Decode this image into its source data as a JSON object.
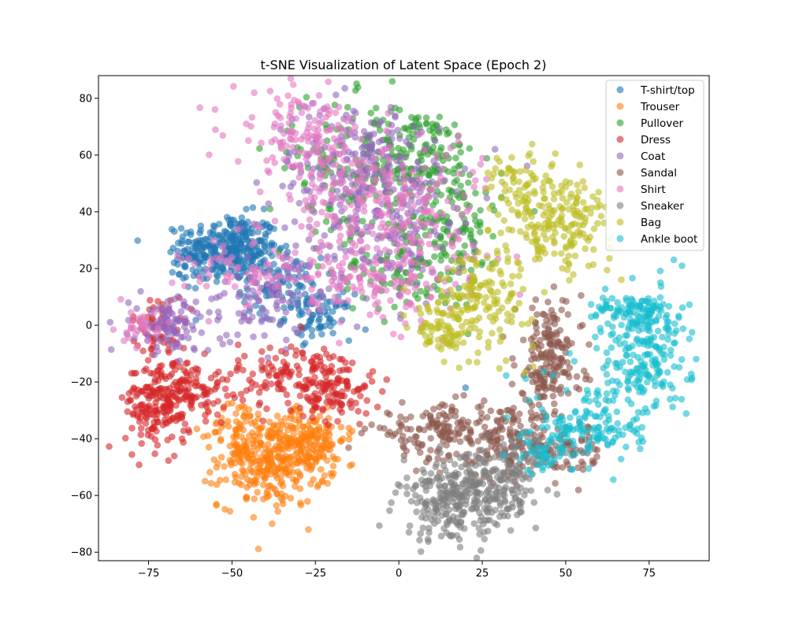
{
  "chart_data": {
    "type": "scatter",
    "title": "t-SNE Visualization of Latent Space (Epoch 2)",
    "xlabel": "",
    "ylabel": "",
    "xlim": [
      -90,
      93
    ],
    "ylim": [
      -83,
      88
    ],
    "xticks": [
      -75,
      -50,
      -25,
      0,
      25,
      50,
      75
    ],
    "yticks": [
      -80,
      -60,
      -40,
      -20,
      0,
      20,
      40,
      60,
      80
    ],
    "grid": false,
    "legend": "top-right",
    "marker_alpha": 0.6,
    "series": [
      {
        "name": "T-shirt/top",
        "color": "#1f77b4",
        "clusters": [
          {
            "center": [
              -50,
              27
            ],
            "spread": [
              7,
              6
            ],
            "count": 300
          },
          {
            "center": [
              -35,
              14
            ],
            "spread": [
              6,
              5
            ],
            "count": 90
          },
          {
            "center": [
              -24,
              3
            ],
            "spread": [
              5,
              4
            ],
            "count": 70
          },
          {
            "center": [
              -62,
              22
            ],
            "spread": [
              4,
              5
            ],
            "count": 40
          }
        ],
        "points": [
          [
            20,
            -22
          ]
        ]
      },
      {
        "name": "Trouser",
        "color": "#ff7f0e",
        "clusters": [
          {
            "center": [
              -38,
              -48
            ],
            "spread": [
              8,
              8
            ],
            "count": 300
          },
          {
            "center": [
              -26,
              -40
            ],
            "spread": [
              5,
              6
            ],
            "count": 120
          },
          {
            "center": [
              -48,
              -38
            ],
            "spread": [
              4,
              6
            ],
            "count": 60
          }
        ]
      },
      {
        "name": "Pullover",
        "color": "#2ca02c",
        "clusters": [
          {
            "center": [
              5,
              60
            ],
            "spread": [
              10,
              8
            ],
            "count": 160
          },
          {
            "center": [
              15,
              35
            ],
            "spread": [
              8,
              12
            ],
            "count": 140
          },
          {
            "center": [
              -15,
              55
            ],
            "spread": [
              12,
              12
            ],
            "count": 120
          },
          {
            "center": [
              0,
              20
            ],
            "spread": [
              10,
              8
            ],
            "count": 80
          }
        ]
      },
      {
        "name": "Dress",
        "color": "#d62728",
        "clusters": [
          {
            "center": [
              -72,
              -28
            ],
            "spread": [
              5,
              8
            ],
            "count": 180
          },
          {
            "center": [
              -62,
              -22
            ],
            "spread": [
              6,
              5
            ],
            "count": 100
          },
          {
            "center": [
              -30,
              -18
            ],
            "spread": [
              9,
              6
            ],
            "count": 150
          },
          {
            "center": [
              -18,
              -25
            ],
            "spread": [
              5,
              5
            ],
            "count": 70
          },
          {
            "center": [
              -72,
              0
            ],
            "spread": [
              4,
              5
            ],
            "count": 50
          }
        ]
      },
      {
        "name": "Coat",
        "color": "#9467bd",
        "clusters": [
          {
            "center": [
              -10,
              55
            ],
            "spread": [
              14,
              12
            ],
            "count": 220
          },
          {
            "center": [
              -5,
              30
            ],
            "spread": [
              12,
              12
            ],
            "count": 120
          },
          {
            "center": [
              -68,
              0
            ],
            "spread": [
              6,
              5
            ],
            "count": 110
          },
          {
            "center": [
              -40,
              8
            ],
            "spread": [
              10,
              8
            ],
            "count": 80
          }
        ]
      },
      {
        "name": "Sandal",
        "color": "#8c564b",
        "clusters": [
          {
            "center": [
              45,
              -12
            ],
            "spread": [
              5,
              10
            ],
            "count": 180
          },
          {
            "center": [
              15,
              -38
            ],
            "spread": [
              12,
              5
            ],
            "count": 180
          },
          {
            "center": [
              35,
              -42
            ],
            "spread": [
              6,
              6
            ],
            "count": 100
          },
          {
            "center": [
              52,
              -45
            ],
            "spread": [
              5,
              5
            ],
            "count": 60
          }
        ]
      },
      {
        "name": "Shirt",
        "color": "#e377c2",
        "clusters": [
          {
            "center": [
              -30,
              68
            ],
            "spread": [
              10,
              7
            ],
            "count": 120
          },
          {
            "center": [
              -15,
              45
            ],
            "spread": [
              10,
              12
            ],
            "count": 140
          },
          {
            "center": [
              5,
              40
            ],
            "spread": [
              12,
              14
            ],
            "count": 140
          },
          {
            "center": [
              -5,
              15
            ],
            "spread": [
              10,
              8
            ],
            "count": 100
          },
          {
            "center": [
              -40,
              18
            ],
            "spread": [
              12,
              6
            ],
            "count": 90
          },
          {
            "center": [
              -78,
              0
            ],
            "spread": [
              3,
              3
            ],
            "count": 30
          }
        ]
      },
      {
        "name": "Sneaker",
        "color": "#7f7f7f",
        "clusters": [
          {
            "center": [
              18,
              -62
            ],
            "spread": [
              9,
              7
            ],
            "count": 280
          },
          {
            "center": [
              30,
              -55
            ],
            "spread": [
              6,
              6
            ],
            "count": 90
          },
          {
            "center": [
              40,
              -45
            ],
            "spread": [
              5,
              4
            ],
            "count": 40
          }
        ]
      },
      {
        "name": "Bag",
        "color": "#bcbd22",
        "clusters": [
          {
            "center": [
              48,
              36
            ],
            "spread": [
              8,
              8
            ],
            "count": 180
          },
          {
            "center": [
              25,
              10
            ],
            "spread": [
              8,
              9
            ],
            "count": 160
          },
          {
            "center": [
              13,
              -2
            ],
            "spread": [
              4,
              4
            ],
            "count": 60
          },
          {
            "center": [
              35,
              50
            ],
            "spread": [
              5,
              6
            ],
            "count": 60
          }
        ]
      },
      {
        "name": "Ankle boot",
        "color": "#17becf",
        "clusters": [
          {
            "center": [
              73,
              -10
            ],
            "spread": [
              7,
              12
            ],
            "count": 220
          },
          {
            "center": [
              58,
              -35
            ],
            "spread": [
              8,
              8
            ],
            "count": 140
          },
          {
            "center": [
              72,
              5
            ],
            "spread": [
              6,
              3
            ],
            "count": 80
          },
          {
            "center": [
              43,
              -45
            ],
            "spread": [
              4,
              4
            ],
            "count": 40
          }
        ]
      }
    ]
  }
}
